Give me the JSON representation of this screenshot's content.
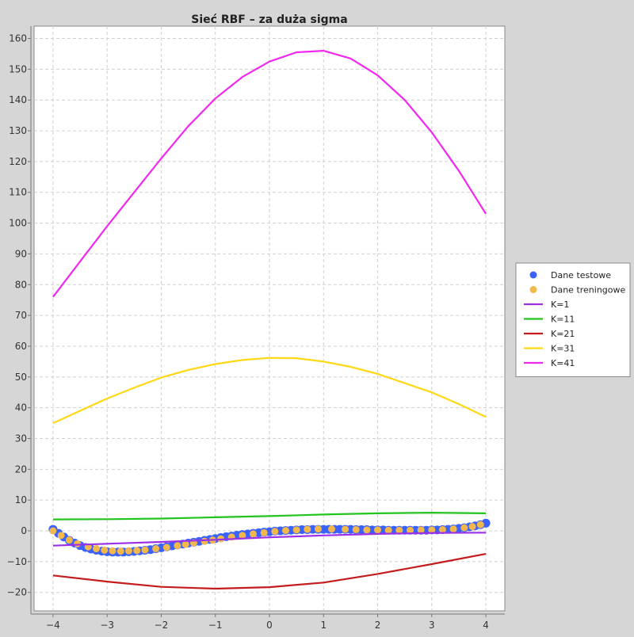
{
  "chart_data": {
    "type": "line",
    "title": "Sieć RBF – za duża sigma",
    "xlabel": "",
    "ylabel": "",
    "xlim": [
      -4.35,
      4.35
    ],
    "ylim": [
      -26,
      164
    ],
    "xticks": [
      -4,
      -3,
      -2,
      -1,
      0,
      1,
      2,
      3,
      4
    ],
    "yticks": [
      -20,
      -10,
      0,
      10,
      20,
      30,
      40,
      50,
      60,
      70,
      80,
      90,
      100,
      110,
      120,
      130,
      140,
      150,
      160
    ],
    "xtick_labels": [
      "−4",
      "−3",
      "−2",
      "−1",
      "0",
      "1",
      "2",
      "3",
      "4"
    ],
    "ytick_labels": [
      "−20",
      "−10",
      "0",
      "10",
      "20",
      "30",
      "40",
      "50",
      "60",
      "70",
      "80",
      "90",
      "100",
      "110",
      "120",
      "130",
      "140",
      "150",
      "160"
    ],
    "grid": true,
    "legend_position": "right",
    "scatter_series": [
      {
        "name": "Dane testowe",
        "color": "#3a62ff",
        "x": [
          -4.0,
          -3.9,
          -3.8,
          -3.7,
          -3.6,
          -3.5,
          -3.4,
          -3.3,
          -3.2,
          -3.1,
          -3.0,
          -2.9,
          -2.8,
          -2.7,
          -2.6,
          -2.5,
          -2.4,
          -2.3,
          -2.2,
          -2.1,
          -2.0,
          -1.9,
          -1.8,
          -1.7,
          -1.6,
          -1.5,
          -1.4,
          -1.3,
          -1.2,
          -1.1,
          -1.0,
          -0.9,
          -0.8,
          -0.7,
          -0.6,
          -0.5,
          -0.4,
          -0.3,
          -0.2,
          -0.1,
          0.0,
          0.1,
          0.2,
          0.3,
          0.4,
          0.5,
          0.6,
          0.7,
          0.8,
          0.9,
          1.0,
          1.1,
          1.2,
          1.3,
          1.4,
          1.5,
          1.6,
          1.7,
          1.8,
          1.9,
          2.0,
          2.1,
          2.2,
          2.3,
          2.4,
          2.5,
          2.6,
          2.7,
          2.8,
          2.9,
          3.0,
          3.1,
          3.2,
          3.3,
          3.4,
          3.5,
          3.6,
          3.7,
          3.8,
          3.9,
          4.0
        ],
        "y": [
          0.5,
          -0.8,
          -2.0,
          -3.1,
          -4.0,
          -4.8,
          -5.4,
          -5.9,
          -6.3,
          -6.6,
          -6.8,
          -6.9,
          -6.9,
          -6.9,
          -6.8,
          -6.7,
          -6.5,
          -6.3,
          -6.1,
          -5.8,
          -5.5,
          -5.2,
          -4.9,
          -4.6,
          -4.3,
          -4.0,
          -3.7,
          -3.4,
          -3.1,
          -2.8,
          -2.5,
          -2.2,
          -1.9,
          -1.7,
          -1.4,
          -1.2,
          -1.0,
          -0.8,
          -0.6,
          -0.4,
          -0.3,
          -0.1,
          0.0,
          0.1,
          0.2,
          0.3,
          0.4,
          0.4,
          0.5,
          0.5,
          0.5,
          0.5,
          0.5,
          0.5,
          0.5,
          0.5,
          0.4,
          0.4,
          0.4,
          0.3,
          0.3,
          0.3,
          0.2,
          0.2,
          0.2,
          0.2,
          0.2,
          0.2,
          0.2,
          0.2,
          0.3,
          0.3,
          0.4,
          0.5,
          0.6,
          0.8,
          1.0,
          1.3,
          1.6,
          2.0,
          2.5
        ]
      },
      {
        "name": "Dane treningowe",
        "color": "#f2b84b",
        "x": [
          -4.0,
          -3.85,
          -3.7,
          -3.55,
          -3.35,
          -3.2,
          -3.05,
          -2.9,
          -2.75,
          -2.6,
          -2.45,
          -2.3,
          -2.1,
          -1.9,
          -1.7,
          -1.55,
          -1.4,
          -1.2,
          -1.05,
          -0.9,
          -0.7,
          -0.5,
          -0.3,
          -0.1,
          0.1,
          0.3,
          0.5,
          0.7,
          0.9,
          1.15,
          1.4,
          1.6,
          1.8,
          2.0,
          2.2,
          2.4,
          2.6,
          2.8,
          3.0,
          3.2,
          3.4,
          3.6,
          3.75,
          3.9
        ],
        "y": [
          0.0,
          -1.5,
          -3.0,
          -4.2,
          -5.2,
          -5.8,
          -6.3,
          -6.5,
          -6.6,
          -6.5,
          -6.4,
          -6.2,
          -5.8,
          -5.4,
          -4.8,
          -4.4,
          -3.9,
          -3.4,
          -3.0,
          -2.6,
          -2.0,
          -1.5,
          -1.0,
          -0.6,
          -0.2,
          0.1,
          0.3,
          0.5,
          0.6,
          0.6,
          0.5,
          0.4,
          0.3,
          0.3,
          0.2,
          0.2,
          0.2,
          0.3,
          0.3,
          0.4,
          0.6,
          1.0,
          1.4,
          2.0
        ]
      }
    ],
    "line_series": [
      {
        "name": "K=1",
        "color": "#9b30e8",
        "x": [
          -4.0,
          -3.0,
          -2.0,
          -1.0,
          0.0,
          1.0,
          2.0,
          3.0,
          4.0
        ],
        "y": [
          -4.8,
          -4.2,
          -3.6,
          -2.9,
          -2.1,
          -1.5,
          -1.0,
          -0.7,
          -0.6
        ]
      },
      {
        "name": "K=11",
        "color": "#22c41e",
        "x": [
          -4.0,
          -3.0,
          -2.0,
          -1.0,
          0.0,
          1.0,
          2.0,
          3.0,
          4.0
        ],
        "y": [
          3.7,
          3.8,
          4.0,
          4.4,
          4.8,
          5.3,
          5.7,
          5.9,
          5.7
        ]
      },
      {
        "name": "K=21",
        "color": "#c41c1c",
        "x": [
          -4.0,
          -3.0,
          -2.0,
          -1.0,
          0.0,
          1.0,
          2.0,
          3.0,
          4.0
        ],
        "y": [
          -14.5,
          -16.5,
          -18.2,
          -18.8,
          -18.3,
          -16.8,
          -14.0,
          -10.8,
          -7.5
        ]
      },
      {
        "name": "K=31",
        "color": "#ffd814",
        "x": [
          -4.0,
          -3.5,
          -3.0,
          -2.5,
          -2.0,
          -1.5,
          -1.0,
          -0.5,
          0.0,
          0.5,
          1.0,
          1.5,
          2.0,
          2.5,
          3.0,
          3.5,
          4.0
        ],
        "y": [
          35.0,
          39.0,
          43.0,
          46.5,
          49.8,
          52.3,
          54.2,
          55.5,
          56.2,
          56.1,
          55.0,
          53.3,
          51.0,
          48.0,
          45.0,
          41.2,
          37.0
        ]
      },
      {
        "name": "K=41",
        "color": "#f028f0",
        "x": [
          -4.0,
          -3.5,
          -3.0,
          -2.5,
          -2.0,
          -1.5,
          -1.0,
          -0.5,
          0.0,
          0.5,
          1.0,
          1.5,
          2.0,
          2.5,
          3.0,
          3.5,
          4.0
        ],
        "y": [
          76.0,
          87.5,
          99.0,
          110.0,
          121.0,
          131.5,
          140.5,
          147.5,
          152.5,
          155.5,
          156.0,
          153.5,
          148.0,
          140.0,
          129.5,
          117.0,
          103.0
        ]
      }
    ]
  }
}
